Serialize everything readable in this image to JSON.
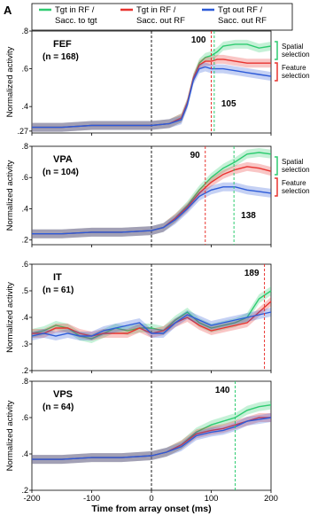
{
  "figure": {
    "panel_letter": "A",
    "xlabel": "Time from array onset (ms)",
    "ylabel": "Normalized activity",
    "x_ticks": [
      "-200",
      "-100",
      "0",
      "100",
      "200"
    ],
    "legend": [
      {
        "line1": "Tgt in RF /",
        "line2": "Sacc. to tgt",
        "color": "#2ecc71"
      },
      {
        "line1": "Tgt in RF /",
        "line2": "Sacc. out RF",
        "color": "#e8332f"
      },
      {
        "line1": "Tgt out RF /",
        "line2": "Sacc. out RF",
        "color": "#2d5bd8"
      }
    ],
    "brackets": {
      "spatial": [
        "Spatial",
        "selection"
      ],
      "feature": [
        "Feature",
        "selection"
      ],
      "spatial_color": "#2ecc71",
      "feature_color": "#e8332f"
    }
  },
  "chart_data": [
    {
      "type": "line",
      "area": "FEF",
      "n_label": "(n = 168)",
      "xlim": [
        -200,
        200
      ],
      "ylim": [
        0.26,
        0.8
      ],
      "y_ticks": [
        {
          "v": 0.8,
          "label": ".8"
        },
        {
          "v": 0.6,
          "label": ".6"
        },
        {
          "v": 0.4,
          "label": ".4"
        },
        {
          "v": 0.27,
          "label": ".27"
        }
      ],
      "x": [
        -200,
        -150,
        -100,
        -50,
        0,
        30,
        50,
        60,
        70,
        80,
        90,
        100,
        110,
        120,
        140,
        160,
        180,
        200
      ],
      "series": [
        {
          "color": "#2ecc71",
          "values": [
            0.29,
            0.29,
            0.3,
            0.3,
            0.3,
            0.31,
            0.34,
            0.42,
            0.55,
            0.63,
            0.66,
            0.67,
            0.69,
            0.72,
            0.73,
            0.73,
            0.71,
            0.72
          ]
        },
        {
          "color": "#e8332f",
          "values": [
            0.29,
            0.29,
            0.3,
            0.3,
            0.3,
            0.31,
            0.34,
            0.42,
            0.55,
            0.62,
            0.64,
            0.64,
            0.65,
            0.65,
            0.64,
            0.63,
            0.63,
            0.63
          ]
        },
        {
          "color": "#2d5bd8",
          "values": [
            0.29,
            0.29,
            0.3,
            0.3,
            0.3,
            0.31,
            0.33,
            0.41,
            0.54,
            0.6,
            0.61,
            0.6,
            0.6,
            0.6,
            0.59,
            0.58,
            0.57,
            0.56
          ]
        }
      ],
      "latency_lines": [
        {
          "x": 100,
          "color": "#e8332f",
          "label": "100",
          "label_pos": "top"
        },
        {
          "x": 105,
          "color": "#2ecc71",
          "label": "105",
          "label_pos": "bottom"
        }
      ],
      "brackets": true
    },
    {
      "type": "line",
      "area": "VPA",
      "n_label": "(n = 104)",
      "xlim": [
        -200,
        200
      ],
      "ylim": [
        0.17,
        0.8
      ],
      "y_ticks": [
        {
          "v": 0.8,
          "label": ".8"
        },
        {
          "v": 0.6,
          "label": ".6"
        },
        {
          "v": 0.4,
          "label": ".4"
        },
        {
          "v": 0.2,
          "label": ".2"
        }
      ],
      "x": [
        -200,
        -150,
        -100,
        -50,
        0,
        20,
        40,
        60,
        80,
        100,
        120,
        140,
        160,
        180,
        200
      ],
      "series": [
        {
          "color": "#2ecc71",
          "values": [
            0.24,
            0.24,
            0.25,
            0.25,
            0.26,
            0.28,
            0.34,
            0.42,
            0.52,
            0.6,
            0.66,
            0.7,
            0.75,
            0.76,
            0.75
          ]
        },
        {
          "color": "#e8332f",
          "values": [
            0.24,
            0.24,
            0.25,
            0.25,
            0.26,
            0.28,
            0.34,
            0.41,
            0.5,
            0.57,
            0.62,
            0.65,
            0.67,
            0.66,
            0.64
          ]
        },
        {
          "color": "#2d5bd8",
          "values": [
            0.24,
            0.24,
            0.25,
            0.25,
            0.26,
            0.28,
            0.33,
            0.4,
            0.48,
            0.52,
            0.54,
            0.54,
            0.52,
            0.51,
            0.5
          ]
        }
      ],
      "latency_lines": [
        {
          "x": 90,
          "color": "#e8332f",
          "label": "90",
          "label_pos": "top"
        },
        {
          "x": 138,
          "color": "#2ecc71",
          "label": "138",
          "label_pos": "bottom"
        }
      ],
      "brackets": true
    },
    {
      "type": "line",
      "area": "IT",
      "n_label": "(n = 61)",
      "xlim": [
        -200,
        200
      ],
      "ylim": [
        0.2,
        0.6
      ],
      "y_ticks": [
        {
          "v": 0.6,
          "label": ".6"
        },
        {
          "v": 0.5,
          "label": ".5"
        },
        {
          "v": 0.4,
          "label": ".4"
        },
        {
          "v": 0.3,
          "label": ".3"
        },
        {
          "v": 0.2,
          "label": ".2"
        }
      ],
      "x": [
        -200,
        -180,
        -160,
        -140,
        -120,
        -100,
        -80,
        -60,
        -40,
        -20,
        0,
        20,
        40,
        60,
        80,
        100,
        120,
        140,
        160,
        180,
        200
      ],
      "series": [
        {
          "color": "#2ecc71",
          "values": [
            0.34,
            0.35,
            0.37,
            0.36,
            0.33,
            0.32,
            0.34,
            0.36,
            0.35,
            0.36,
            0.36,
            0.35,
            0.39,
            0.42,
            0.38,
            0.36,
            0.37,
            0.38,
            0.4,
            0.47,
            0.5
          ]
        },
        {
          "color": "#e8332f",
          "values": [
            0.34,
            0.34,
            0.36,
            0.36,
            0.34,
            0.33,
            0.34,
            0.34,
            0.34,
            0.36,
            0.34,
            0.35,
            0.38,
            0.4,
            0.37,
            0.35,
            0.36,
            0.37,
            0.38,
            0.42,
            0.46
          ]
        },
        {
          "color": "#2d5bd8",
          "values": [
            0.33,
            0.34,
            0.33,
            0.34,
            0.33,
            0.33,
            0.35,
            0.36,
            0.37,
            0.38,
            0.34,
            0.34,
            0.38,
            0.41,
            0.39,
            0.37,
            0.38,
            0.39,
            0.4,
            0.41,
            0.42
          ]
        }
      ],
      "latency_lines": [
        {
          "x": 189,
          "color": "#e8332f",
          "label": "189",
          "label_pos": "top"
        }
      ],
      "brackets": false
    },
    {
      "type": "line",
      "area": "VPS",
      "n_label": "(n = 64)",
      "xlim": [
        -200,
        200
      ],
      "ylim": [
        0.2,
        0.8
      ],
      "y_ticks": [
        {
          "v": 0.8,
          "label": ".8"
        },
        {
          "v": 0.6,
          "label": ".6"
        },
        {
          "v": 0.4,
          "label": ".4"
        },
        {
          "v": 0.2,
          "label": ".2"
        }
      ],
      "x": [
        -200,
        -150,
        -100,
        -50,
        0,
        25,
        50,
        75,
        100,
        120,
        140,
        160,
        180,
        200
      ],
      "series": [
        {
          "color": "#2ecc71",
          "values": [
            0.37,
            0.37,
            0.38,
            0.38,
            0.39,
            0.41,
            0.45,
            0.52,
            0.56,
            0.58,
            0.6,
            0.64,
            0.66,
            0.67
          ]
        },
        {
          "color": "#e8332f",
          "values": [
            0.37,
            0.37,
            0.38,
            0.38,
            0.39,
            0.41,
            0.45,
            0.51,
            0.53,
            0.54,
            0.56,
            0.58,
            0.6,
            0.6
          ]
        },
        {
          "color": "#2d5bd8",
          "values": [
            0.37,
            0.37,
            0.38,
            0.38,
            0.39,
            0.41,
            0.44,
            0.5,
            0.52,
            0.53,
            0.55,
            0.58,
            0.59,
            0.6
          ]
        }
      ],
      "latency_lines": [
        {
          "x": 140,
          "color": "#2ecc71",
          "label": "140",
          "label_pos": "top"
        }
      ],
      "brackets": false
    }
  ]
}
